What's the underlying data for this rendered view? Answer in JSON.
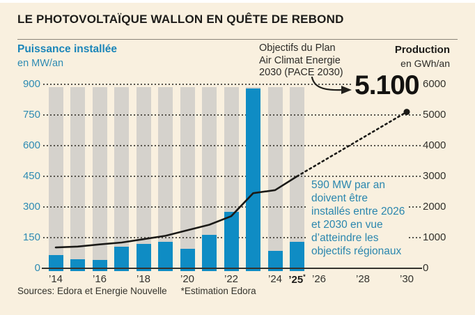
{
  "title": "LE PHOTOVOLTAÏQUE WALLON EN QUÊTE DE REBOND",
  "left_axis": {
    "title": "Puissance installée",
    "unit": "en MW/an"
  },
  "right_axis": {
    "title": "Production",
    "unit": "en GWh/an"
  },
  "pace": {
    "line1": "Objectifs du Plan",
    "line2": "Air Climat Energie",
    "line3": "2030 (PACE 2030)"
  },
  "target_value": "5.100",
  "note": {
    "line1": "590 MW par an",
    "line2": "doivent être",
    "line3": "installés entre 2026",
    "line4": "et 2030 en vue",
    "line5": "d’atteindre les",
    "line6": "objectifs régionaux"
  },
  "footer": {
    "sources": "Sources: Edora et Energie Nouvelle",
    "estimation": "*Estimation Edora"
  },
  "colors": {
    "background": "#f9f0df",
    "bar_blue": "#0f8cc4",
    "column_gray": "#d5d2cc",
    "accent_blue_text": "#2a86ae",
    "axis_blue": "#2e8bb3",
    "line_black": "#1b1a17",
    "grid_dot": "#55524a"
  },
  "chart_data": {
    "type": "bar",
    "subtype": "bar+line dual axis",
    "grid": "horizontal-dotted",
    "bar_series": {
      "name": "Puissance installée",
      "unit": "MW/an",
      "years": [
        2014,
        2015,
        2016,
        2017,
        2018,
        2019,
        2020,
        2021,
        2022,
        2023,
        2024,
        2025
      ],
      "values": [
        65,
        45,
        40,
        105,
        120,
        130,
        95,
        165,
        275,
        880,
        85,
        130
      ]
    },
    "line_series": {
      "name": "Production",
      "unit": "GWh/an",
      "years": [
        2014,
        2015,
        2016,
        2017,
        2018,
        2019,
        2020,
        2021,
        2022,
        2023,
        2024,
        2025
      ],
      "values": [
        680,
        710,
        780,
        840,
        950,
        1060,
        1240,
        1420,
        1700,
        2450,
        2550,
        3000
      ]
    },
    "projection": {
      "style": "dotted",
      "from_year": 2025,
      "from_value": 3000,
      "to_year": 2030,
      "to_value": 5100,
      "label": "5.100"
    },
    "x_ticks": [
      {
        "text": "’14",
        "year": 2014
      },
      {
        "text": "’16",
        "year": 2016
      },
      {
        "text": "’18",
        "year": 2018
      },
      {
        "text": "’20",
        "year": 2020
      },
      {
        "text": "’22",
        "year": 2022
      },
      {
        "text": "’24",
        "year": 2024
      },
      {
        "text": "’25",
        "year": 2025,
        "bold": true,
        "suffix": "*"
      },
      {
        "text": "’26",
        "year": 2026
      },
      {
        "text": "’28",
        "year": 2028
      },
      {
        "text": "’30",
        "year": 2030
      }
    ],
    "left_ticks": [
      0,
      150,
      300,
      450,
      600,
      750,
      900
    ],
    "right_ticks": [
      0,
      1000,
      2000,
      3000,
      4000,
      5000,
      6000
    ],
    "left_range": [
      0,
      900
    ],
    "right_range": [
      0,
      6000
    ],
    "x_range": [
      2014,
      2030
    ]
  }
}
